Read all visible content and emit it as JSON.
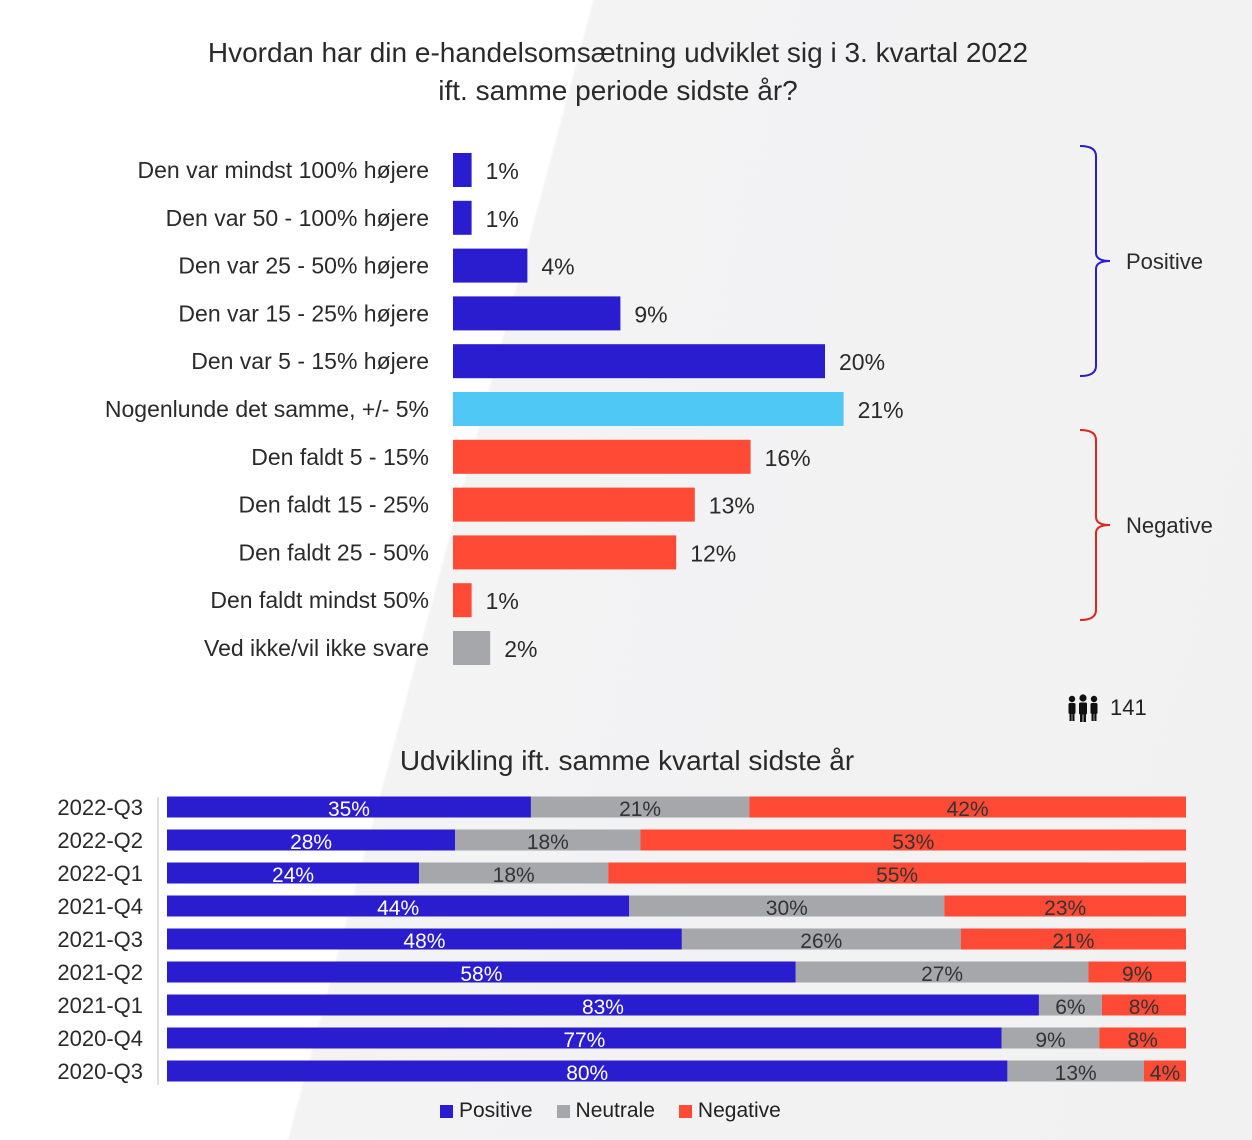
{
  "chart_data": [
    {
      "type": "bar",
      "orientation": "horizontal",
      "title": "Hvordan har din e-handelsomsætning udviklet sig i 3. kvartal 2022 ift. samme periode sidste år?",
      "categories": [
        "Den var mindst 100% højere",
        "Den var 50 - 100% højere",
        "Den var 25 - 50% højere",
        "Den var 15 - 25% højere",
        "Den var 5 - 15% højere",
        "Nogenlunde det samme, +/- 5%",
        "Den faldt 5 - 15%",
        "Den faldt 15 - 25%",
        "Den faldt 25 - 50%",
        "Den faldt mindst 50%",
        "Ved ikke/vil ikke svare"
      ],
      "values": [
        1,
        1,
        4,
        9,
        20,
        21,
        16,
        13,
        12,
        1,
        2
      ],
      "value_labels": [
        "1%",
        "1%",
        "4%",
        "9%",
        "20%",
        "21%",
        "16%",
        "13%",
        "12%",
        "1%",
        "2%"
      ],
      "groups": [
        "positive",
        "positive",
        "positive",
        "positive",
        "positive",
        "neutral",
        "negative",
        "negative",
        "negative",
        "negative",
        "unknown"
      ],
      "bracket_labels": {
        "positive": "Positive",
        "negative": "Negative"
      },
      "respondents": "141",
      "grid": false,
      "colors": {
        "positive": "#2a1ccf",
        "neutral": "#4fc8f6",
        "negative": "#ff4a35",
        "unknown": "#a5a7aa"
      }
    },
    {
      "type": "bar",
      "orientation": "horizontal",
      "stacked": true,
      "title": "Udvikling ift. samme kvartal sidste år",
      "categories": [
        "2022-Q3",
        "2022-Q2",
        "2022-Q1",
        "2021-Q4",
        "2021-Q3",
        "2021-Q2",
        "2021-Q1",
        "2020-Q4",
        "2020-Q3"
      ],
      "series": [
        {
          "name": "Positive",
          "color": "#2a1ccf",
          "values": [
            35,
            28,
            24,
            44,
            48,
            58,
            83,
            77,
            80
          ]
        },
        {
          "name": "Neutrale",
          "color": "#a5a7aa",
          "values": [
            21,
            18,
            18,
            30,
            26,
            27,
            6,
            9,
            13
          ]
        },
        {
          "name": "Negative",
          "color": "#ff4a35",
          "values": [
            42,
            53,
            55,
            23,
            21,
            9,
            8,
            8,
            4
          ]
        }
      ],
      "legend_position": "bottom",
      "grid": false
    }
  ]
}
